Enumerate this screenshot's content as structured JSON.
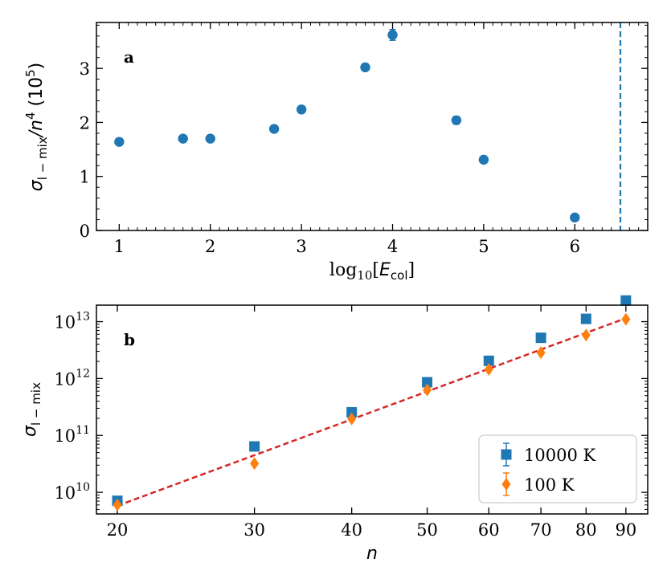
{
  "chart_data": [
    {
      "panel": "a",
      "type": "scatter",
      "panel_label": "a",
      "xlabel_main": "log",
      "xlabel_sub": "10",
      "xlabel_var": "E",
      "xlabel_var_sub": "col",
      "ylabel_sym": "σ",
      "ylabel_sub": "l − mix",
      "ylabel_mid": "/n",
      "ylabel_exp": "4",
      "ylabel_unit_pre": " (10",
      "ylabel_unit_exp": "5",
      "ylabel_unit_post": ")",
      "xlim": [
        0.75,
        6.8
      ],
      "ylim": [
        0,
        3.85
      ],
      "xticks": [
        1,
        2,
        3,
        4,
        5,
        6
      ],
      "xtick_labels": [
        "1",
        "2",
        "3",
        "4",
        "5",
        "6"
      ],
      "yticks": [
        0,
        1,
        2,
        3
      ],
      "ytick_labels": [
        "0",
        "1",
        "2",
        "3"
      ],
      "vline_x": 6.5,
      "color": "#1f77b4",
      "points": [
        {
          "x": 1.0,
          "y": 1.64,
          "err": 0.02
        },
        {
          "x": 1.7,
          "y": 1.7,
          "err": 0.02
        },
        {
          "x": 2.0,
          "y": 1.7,
          "err": 0.02
        },
        {
          "x": 2.7,
          "y": 1.88,
          "err": 0.02
        },
        {
          "x": 3.0,
          "y": 2.24,
          "err": 0.02
        },
        {
          "x": 3.7,
          "y": 3.02,
          "err": 0.06
        },
        {
          "x": 4.0,
          "y": 3.62,
          "err": 0.1
        },
        {
          "x": 4.7,
          "y": 2.04,
          "err": 0.07
        },
        {
          "x": 5.0,
          "y": 1.31,
          "err": 0.02
        },
        {
          "x": 6.0,
          "y": 0.24,
          "err": 0.02
        }
      ]
    },
    {
      "panel": "b",
      "type": "scatter",
      "panel_label": "b",
      "xscale": "log",
      "yscale": "log",
      "xlabel": "n",
      "ylabel_sym": "σ",
      "ylabel_sub": "l − mix",
      "xlim": [
        18.8,
        96
      ],
      "ylim_exp": [
        9.62,
        13.29
      ],
      "xticks": [
        20,
        30,
        40,
        50,
        60,
        70,
        80,
        90
      ],
      "xtick_labels": [
        "20",
        "30",
        "40",
        "50",
        "60",
        "70",
        "80",
        "90"
      ],
      "yticks_exp": [
        10,
        11,
        12,
        13
      ],
      "ytick_base": "10",
      "ytick_exps": [
        "10",
        "11",
        "12",
        "13"
      ],
      "legend_position": "lower-right",
      "series": [
        {
          "name": "10000 K",
          "marker": "square",
          "color": "#1f77b4",
          "x": [
            20,
            30,
            40,
            50,
            60,
            70,
            80,
            90
          ],
          "y": [
            7100000000.0,
            64000000000.0,
            255000000000.0,
            860000000000.0,
            2050000000000.0,
            5200000000000.0,
            11200000000000.0,
            23500000000000.0
          ]
        },
        {
          "name": "100 K",
          "marker": "diamond",
          "color": "#ff7f0e",
          "x": [
            20,
            30,
            40,
            50,
            60,
            70,
            80,
            90
          ],
          "y": [
            6000000000.0,
            32000000000.0,
            195000000000.0,
            630000000000.0,
            1450000000000.0,
            2850000000000.0,
            5800000000000.0,
            11000000000000.0
          ]
        }
      ],
      "fit_line": {
        "color": "#d62728",
        "style": "dashed",
        "x": [
          20,
          90
        ],
        "y": [
          5800000000.0,
          11500000000000.0
        ]
      }
    }
  ]
}
